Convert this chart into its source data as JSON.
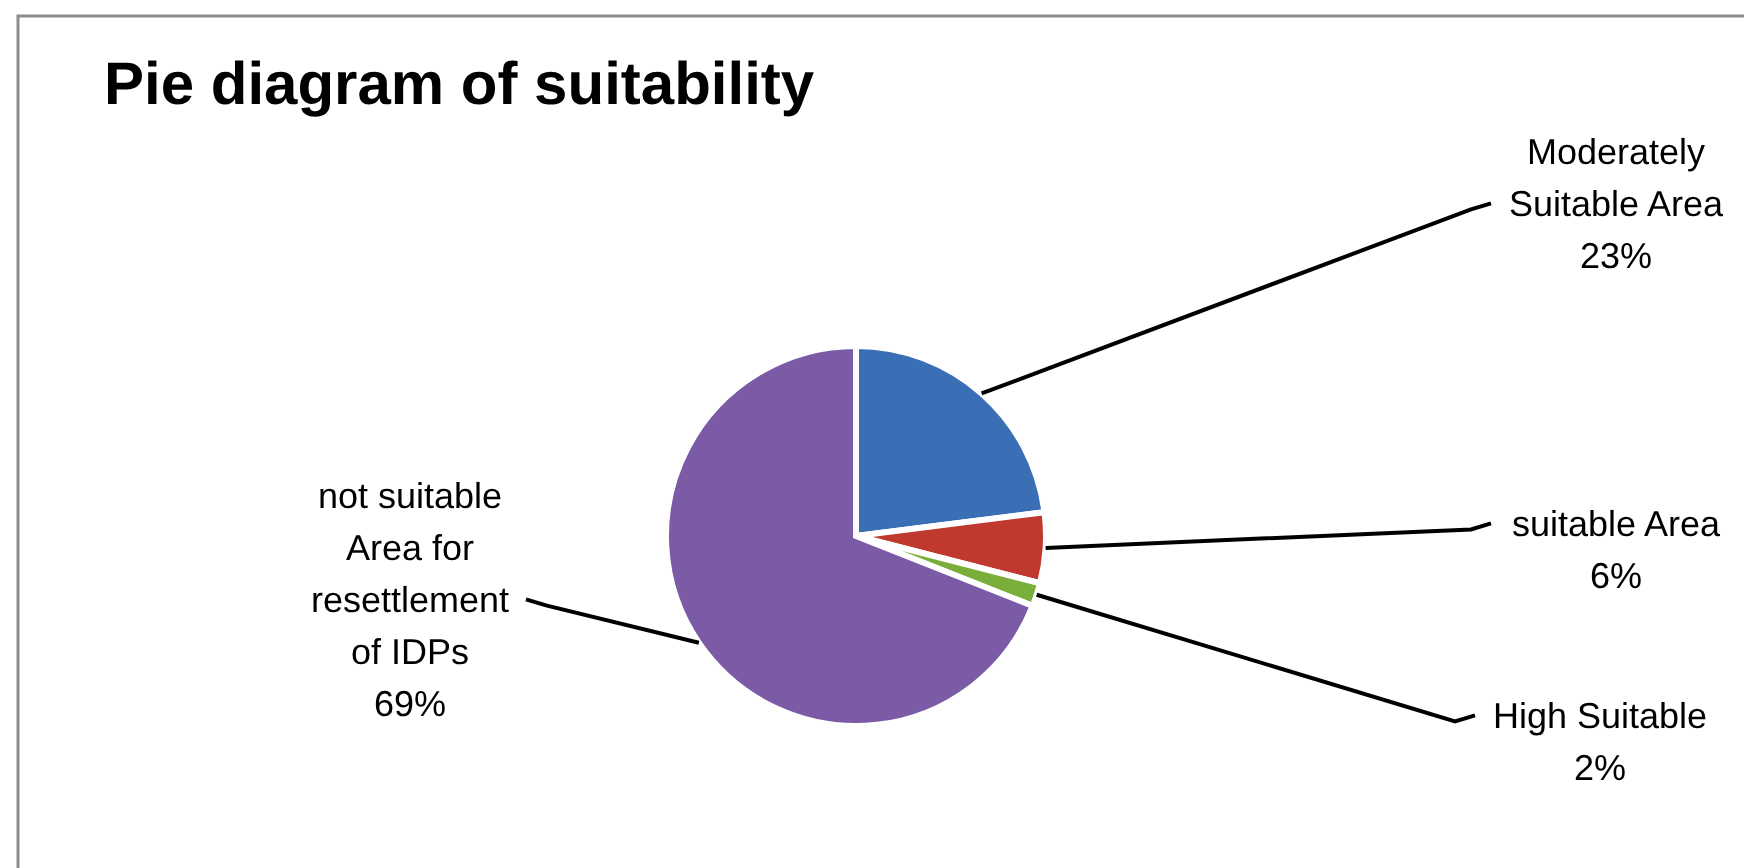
{
  "chart_data": {
    "type": "pie",
    "title": "Pie diagram of suitability",
    "categories": [
      "Moderately Suitable Area",
      "suitable Area",
      "High Suitable",
      "not suitable Area for resettlement of IDPs"
    ],
    "values": [
      23,
      6,
      2,
      69
    ],
    "colors": [
      "#3a6fb5",
      "#c0392f",
      "#7aae3a",
      "#7b5aa6"
    ],
    "value_labels": [
      "23%",
      "6%",
      "2%",
      "69%"
    ]
  }
}
